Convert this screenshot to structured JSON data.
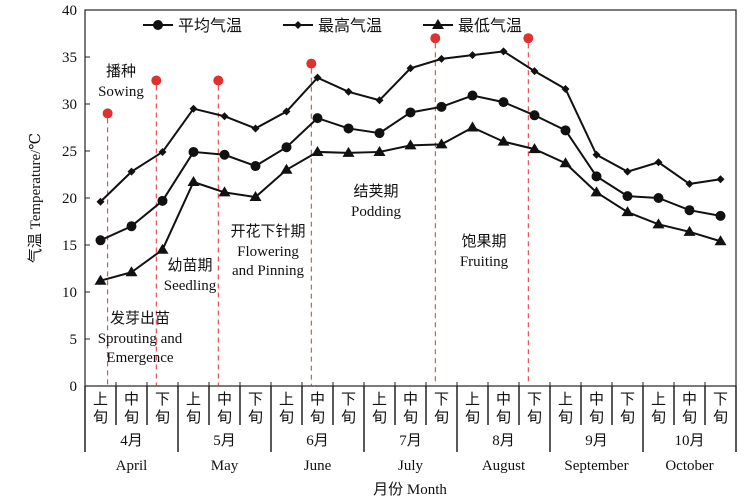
{
  "chart_data": {
    "type": "line",
    "ylabel_cn": "气温",
    "ylabel": "Temperature/℃",
    "xlabel": "月份  Month",
    "ylim": [
      0,
      40
    ],
    "yticks": [
      0,
      5,
      10,
      15,
      20,
      25,
      30,
      35,
      40
    ],
    "grid": false,
    "legend_position": "top",
    "dekads": [
      "上\n旬",
      "中\n旬",
      "下\n旬"
    ],
    "months": [
      {
        "cn": "4月",
        "en": "April"
      },
      {
        "cn": "5月",
        "en": "May"
      },
      {
        "cn": "6月",
        "en": "June"
      },
      {
        "cn": "7月",
        "en": "July"
      },
      {
        "cn": "8月",
        "en": "August"
      },
      {
        "cn": "9月",
        "en": "September"
      },
      {
        "cn": "10月",
        "en": "October"
      }
    ],
    "series": [
      {
        "name": "平均气温",
        "marker": "circle",
        "values": [
          15.5,
          17.0,
          19.7,
          24.9,
          24.6,
          23.4,
          25.4,
          28.5,
          27.4,
          26.9,
          29.1,
          29.7,
          30.9,
          30.2,
          28.8,
          27.2,
          22.3,
          20.2,
          20.0,
          18.7,
          18.1
        ]
      },
      {
        "name": "最高气温",
        "marker": "diamond",
        "values": [
          19.6,
          22.8,
          24.9,
          29.5,
          28.7,
          27.4,
          29.2,
          32.8,
          31.3,
          30.4,
          33.8,
          34.8,
          35.2,
          35.6,
          33.5,
          31.6,
          24.6,
          22.8,
          23.8,
          21.5,
          22.0
        ]
      },
      {
        "name": "最低气温",
        "marker": "triangle",
        "values": [
          11.2,
          12.1,
          14.5,
          21.7,
          20.6,
          20.1,
          23.0,
          24.9,
          24.8,
          24.9,
          25.6,
          25.7,
          27.5,
          26.0,
          25.2,
          23.7,
          20.6,
          18.5,
          17.2,
          16.4,
          15.4
        ]
      }
    ],
    "stage_markers": [
      {
        "x": 0.23,
        "y": 29.0
      },
      {
        "x": 1.8,
        "y": 32.5
      },
      {
        "x": 3.8,
        "y": 32.5
      },
      {
        "x": 6.8,
        "y": 34.3
      },
      {
        "x": 10.8,
        "y": 37.0
      },
      {
        "x": 13.8,
        "y": 37.0
      }
    ],
    "marker_color": "#e03030",
    "annotations": [
      {
        "cn": "播种",
        "en": "Sowing"
      },
      {
        "cn": "发芽出苗",
        "en": "Sprouting and\nEmergence"
      },
      {
        "cn": "幼苗期",
        "en": "Seedling"
      },
      {
        "cn": "开花下针期",
        "en": "Flowering\nand Pinning"
      },
      {
        "cn": "结荚期",
        "en": "Podding"
      },
      {
        "cn": "饱果期",
        "en": "Fruiting"
      }
    ]
  }
}
